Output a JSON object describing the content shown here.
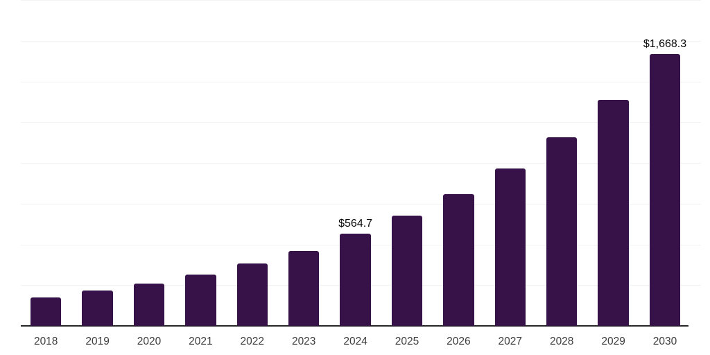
{
  "chart_data": {
    "type": "bar",
    "title": "",
    "xlabel": "",
    "ylabel": "",
    "categories": [
      "2018",
      "2019",
      "2020",
      "2021",
      "2022",
      "2023",
      "2024",
      "2025",
      "2026",
      "2027",
      "2028",
      "2029",
      "2030"
    ],
    "values": [
      175,
      215,
      260,
      315,
      385,
      460,
      564.7,
      677,
      810,
      965,
      1156,
      1389,
      1668.3
    ],
    "visible_value_labels": [
      {
        "category": "2024",
        "text": "$564.7"
      },
      {
        "category": "2030",
        "text": "$1,668.3"
      }
    ],
    "ylim": [
      0,
      2000
    ],
    "gridline_interval": 250,
    "grid": true,
    "y_axis_tick_labels_visible": false,
    "legend_position": "none",
    "colors": {
      "bar": "#361249",
      "axis_line": "#262626",
      "gridline": "#f2f2f2",
      "x_tick_label": "#3d3d3d",
      "value_label": "#0a0a0a",
      "background": "#ffffff"
    }
  }
}
